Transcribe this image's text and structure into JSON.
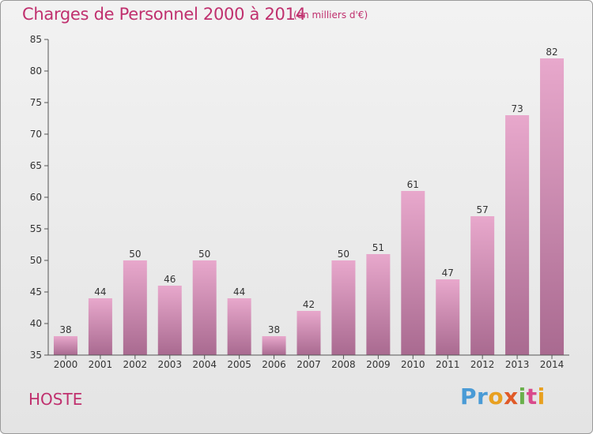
{
  "title": "Charges de Personnel 2000 à 2014",
  "subtitle": "(en milliers d'€)",
  "commune": "HOSTE",
  "logo": {
    "letters": [
      "P",
      "r",
      "o",
      "x",
      "i",
      "t",
      "i"
    ],
    "colors": [
      "#4a9bd6",
      "#4a9bd6",
      "#e8a020",
      "#e05a28",
      "#6ab04c",
      "#d94a8c",
      "#e8a020"
    ]
  },
  "colors": {
    "accent": "#c0306e",
    "bar_top": "#e8a8cc",
    "bar_bottom": "#a96a90"
  },
  "chart_data": {
    "type": "bar",
    "categories": [
      "2000",
      "2001",
      "2002",
      "2003",
      "2004",
      "2005",
      "2006",
      "2007",
      "2008",
      "2009",
      "2010",
      "2011",
      "2012",
      "2013",
      "2014"
    ],
    "values": [
      38,
      44,
      50,
      46,
      50,
      44,
      38,
      42,
      50,
      51,
      61,
      47,
      57,
      73,
      82
    ],
    "ylim": [
      35,
      85
    ],
    "yticks": [
      35,
      40,
      45,
      50,
      55,
      60,
      65,
      70,
      75,
      80,
      85
    ],
    "grid": false,
    "legend": "none"
  }
}
